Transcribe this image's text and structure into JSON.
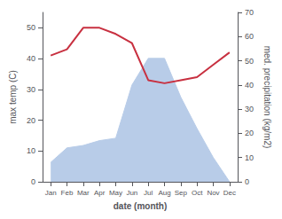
{
  "chart_data": {
    "type": "line",
    "categories": [
      "Jan",
      "Feb",
      "Mar",
      "Apr",
      "May",
      "Jun",
      "Jul",
      "Aug",
      "Sep",
      "Oct",
      "Nov",
      "Dec"
    ],
    "series": [
      {
        "type": "area",
        "axis": "y2",
        "color": "#b8cce8",
        "values": [
          8,
          14,
          15,
          17,
          18,
          40,
          51,
          51,
          35,
          22,
          10,
          0
        ]
      },
      {
        "type": "line",
        "color": "#c83040",
        "values": [
          41,
          43,
          50,
          50,
          48,
          45,
          33,
          32,
          33,
          34,
          38,
          42
        ]
      }
    ],
    "xlabel": "date (month)",
    "ylabel": "max temp (C)",
    "y2label": "med. precipitation (kg/m2)",
    "ylim": [
      0,
      55
    ],
    "yticks": [
      0,
      10,
      20,
      30,
      40,
      50
    ],
    "y2lim": [
      0,
      70
    ],
    "y2ticks": [
      0,
      10,
      20,
      30,
      40,
      50,
      60,
      70
    ],
    "grid": false
  }
}
